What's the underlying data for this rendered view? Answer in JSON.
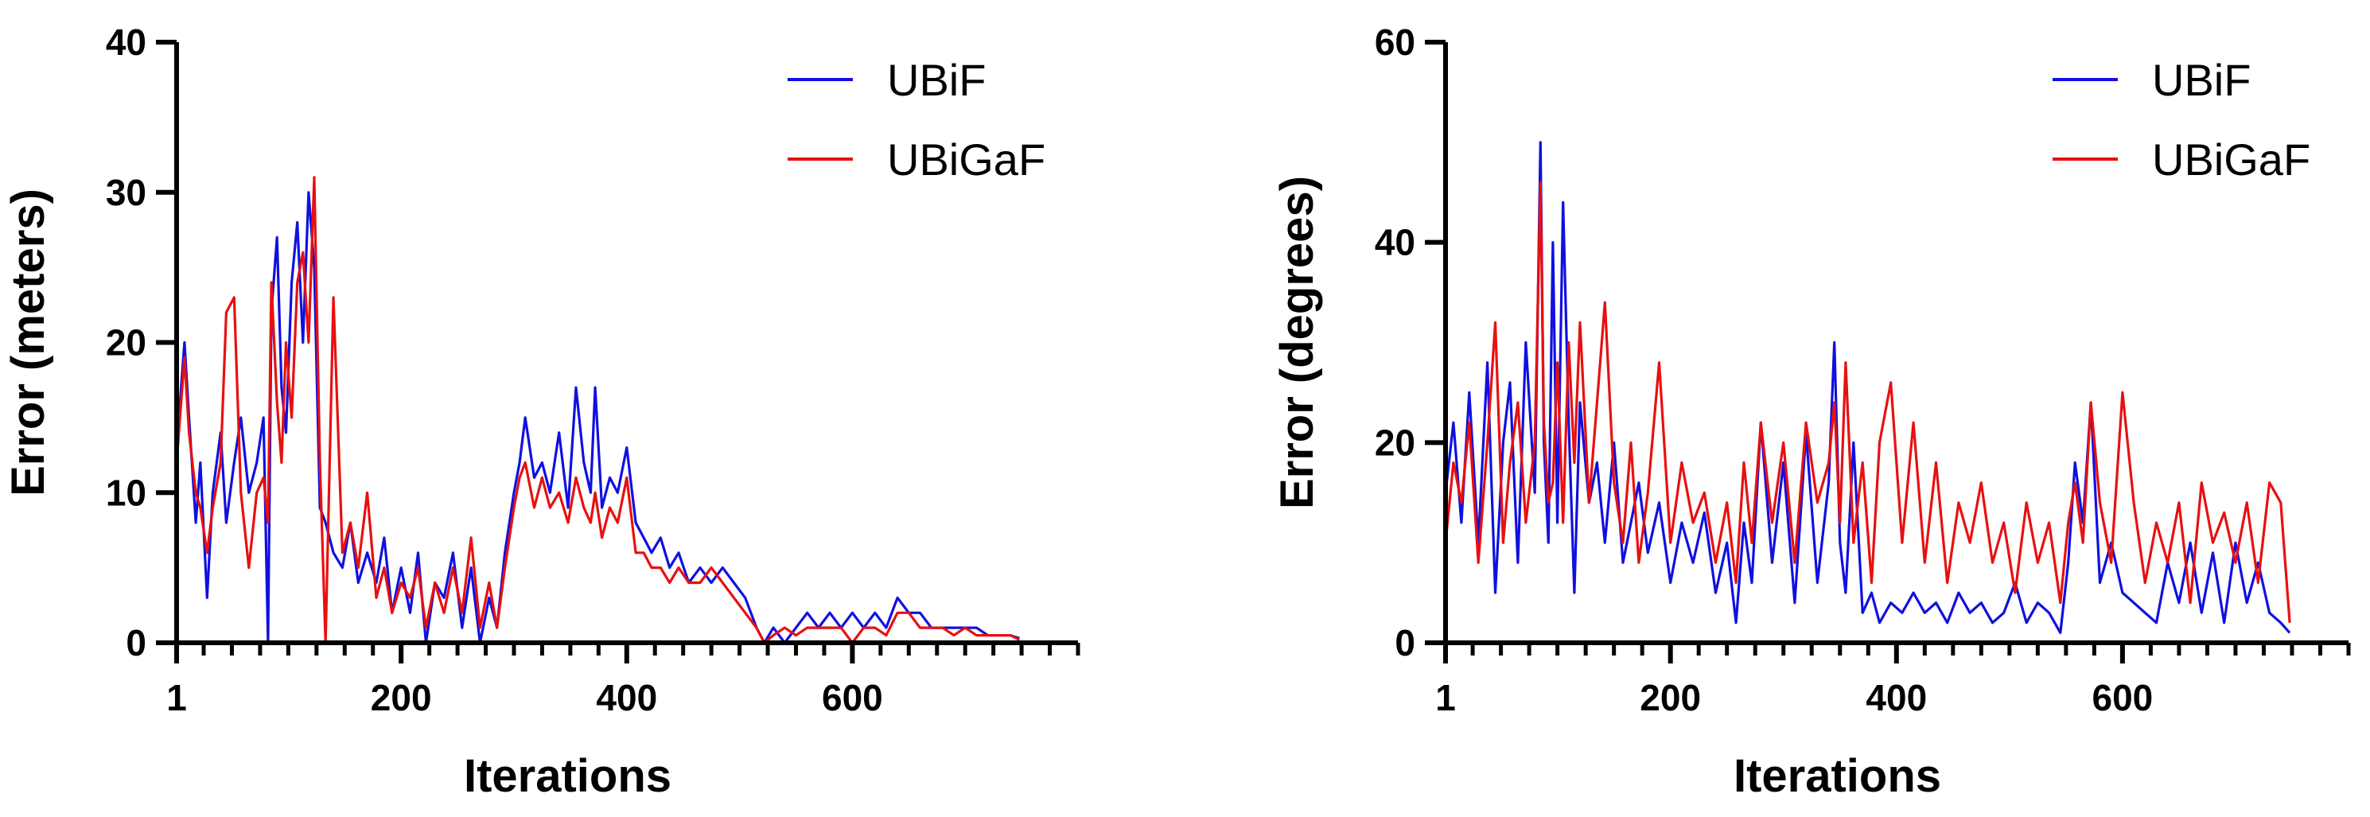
{
  "chart_data": [
    {
      "type": "line",
      "xlabel": "Iterations",
      "ylabel": "Error (meters)",
      "xlim": [
        1,
        800
      ],
      "ylim": [
        0,
        40
      ],
      "x_ticks": [
        1,
        200,
        400,
        600
      ],
      "x_tick_labels": [
        "1",
        "200",
        "400",
        "600"
      ],
      "y_ticks": [
        0,
        10,
        20,
        30,
        40
      ],
      "y_tick_labels": [
        "0",
        "10",
        "20",
        "30",
        "40"
      ],
      "legend": {
        "placement": "top-right"
      },
      "grid": false,
      "series": [
        {
          "name": "UBiF",
          "color": "#1010e0",
          "x": [
            1,
            8,
            12,
            18,
            22,
            28,
            33,
            40,
            45,
            52,
            58,
            65,
            72,
            78,
            82,
            85,
            90,
            94,
            98,
            103,
            108,
            113,
            118,
            123,
            128,
            133,
            140,
            148,
            155,
            162,
            170,
            178,
            185,
            192,
            200,
            208,
            215,
            222,
            230,
            238,
            246,
            254,
            262,
            270,
            278,
            285,
            292,
            300,
            305,
            310,
            318,
            325,
            332,
            340,
            348,
            355,
            362,
            368,
            372,
            378,
            385,
            392,
            400,
            408,
            415,
            422,
            430,
            438,
            446,
            455,
            465,
            475,
            485,
            495,
            505,
            515,
            522,
            530,
            540,
            550,
            560,
            570,
            580,
            590,
            600,
            610,
            620,
            630,
            640,
            650,
            660,
            670,
            680,
            690,
            700,
            710,
            720,
            730,
            740,
            748
          ],
          "y": [
            13,
            20,
            15,
            8,
            12,
            3,
            10,
            14,
            8,
            12,
            15,
            10,
            12,
            15,
            0,
            22,
            27,
            17,
            14,
            24,
            28,
            20,
            30,
            25,
            9,
            8,
            6,
            5,
            8,
            4,
            6,
            4,
            7,
            2,
            5,
            2,
            6,
            0,
            4,
            3,
            6,
            1,
            5,
            0,
            3,
            1,
            6,
            10,
            12,
            15,
            11,
            12,
            10,
            14,
            9,
            17,
            12,
            10,
            17,
            9,
            11,
            10,
            13,
            8,
            7,
            6,
            7,
            5,
            6,
            4,
            5,
            4,
            5,
            4,
            3,
            1,
            0,
            1,
            0,
            1,
            2,
            1,
            2,
            1,
            2,
            1,
            2,
            1,
            3,
            2,
            2,
            1,
            1,
            1,
            1,
            1,
            0.5,
            0.5,
            0.5,
            0.3
          ]
        },
        {
          "name": "UBiGaF",
          "color": "#e81010",
          "x": [
            1,
            8,
            12,
            18,
            22,
            28,
            33,
            40,
            45,
            52,
            58,
            65,
            72,
            78,
            82,
            85,
            90,
            94,
            98,
            103,
            108,
            113,
            118,
            123,
            128,
            133,
            140,
            148,
            155,
            162,
            170,
            178,
            185,
            192,
            200,
            208,
            215,
            222,
            230,
            238,
            246,
            254,
            262,
            270,
            278,
            285,
            292,
            300,
            305,
            310,
            318,
            325,
            332,
            340,
            348,
            355,
            362,
            368,
            372,
            378,
            385,
            392,
            400,
            408,
            415,
            422,
            430,
            438,
            446,
            455,
            465,
            475,
            485,
            495,
            505,
            515,
            522,
            530,
            540,
            550,
            560,
            570,
            580,
            590,
            600,
            610,
            620,
            630,
            640,
            650,
            660,
            670,
            680,
            690,
            700,
            710,
            720,
            730,
            740,
            748
          ],
          "y": [
            12,
            19,
            14,
            10,
            9,
            6,
            9,
            12,
            22,
            23,
            10,
            5,
            10,
            11,
            8,
            24,
            16,
            12,
            20,
            15,
            24,
            26,
            20,
            31,
            12,
            0,
            23,
            6,
            8,
            5,
            10,
            3,
            5,
            2,
            4,
            3,
            5,
            1,
            4,
            2,
            5,
            2,
            7,
            1,
            4,
            1,
            5,
            9,
            11,
            12,
            9,
            11,
            9,
            10,
            8,
            11,
            9,
            8,
            10,
            7,
            9,
            8,
            11,
            6,
            6,
            5,
            5,
            4,
            5,
            4,
            4,
            5,
            4,
            3,
            2,
            1,
            0,
            0.5,
            1,
            0.5,
            1,
            1,
            1,
            1,
            0,
            1,
            1,
            0.5,
            2,
            2,
            1,
            1,
            1,
            0.5,
            1,
            0.5,
            0.5,
            0.5,
            0.5,
            0.2
          ]
        }
      ]
    },
    {
      "type": "line",
      "xlabel": "Iterations",
      "ylabel": "Error (degrees)",
      "xlim": [
        1,
        800
      ],
      "ylim": [
        0,
        60
      ],
      "x_ticks": [
        1,
        200,
        400,
        600
      ],
      "x_tick_labels": [
        "1",
        "200",
        "400",
        "600"
      ],
      "y_ticks": [
        0,
        20,
        40,
        60
      ],
      "y_tick_labels": [
        "0",
        "20",
        "40",
        "60"
      ],
      "legend": {
        "placement": "top-right"
      },
      "grid": false,
      "series": [
        {
          "name": "UBiF",
          "color": "#1010e0",
          "x": [
            1,
            8,
            15,
            22,
            30,
            38,
            45,
            52,
            58,
            65,
            72,
            80,
            85,
            88,
            92,
            96,
            100,
            105,
            110,
            115,
            120,
            128,
            135,
            142,
            150,
            158,
            165,
            172,
            180,
            190,
            200,
            210,
            220,
            230,
            240,
            250,
            258,
            265,
            272,
            280,
            290,
            300,
            310,
            320,
            330,
            340,
            345,
            350,
            355,
            362,
            370,
            378,
            385,
            395,
            405,
            415,
            425,
            435,
            445,
            455,
            465,
            475,
            485,
            495,
            505,
            515,
            525,
            535,
            545,
            552,
            558,
            565,
            572,
            580,
            590,
            600,
            610,
            620,
            630,
            640,
            650,
            660,
            670,
            680,
            690,
            700,
            710,
            720,
            730,
            740,
            748
          ],
          "y": [
            15,
            22,
            12,
            25,
            10,
            28,
            5,
            20,
            26,
            8,
            30,
            15,
            50,
            20,
            10,
            40,
            12,
            44,
            22,
            5,
            24,
            14,
            18,
            10,
            20,
            8,
            12,
            16,
            9,
            14,
            6,
            12,
            8,
            13,
            5,
            10,
            2,
            12,
            6,
            22,
            8,
            18,
            4,
            21,
            6,
            16,
            30,
            10,
            5,
            20,
            3,
            5,
            2,
            4,
            3,
            5,
            3,
            4,
            2,
            5,
            3,
            4,
            2,
            3,
            6,
            2,
            4,
            3,
            1,
            8,
            18,
            12,
            24,
            6,
            10,
            5,
            4,
            3,
            2,
            8,
            4,
            10,
            3,
            9,
            2,
            10,
            4,
            8,
            3,
            2,
            1
          ]
        },
        {
          "name": "UBiGaF",
          "color": "#e81010",
          "x": [
            1,
            8,
            15,
            22,
            30,
            38,
            45,
            52,
            58,
            65,
            72,
            80,
            85,
            88,
            92,
            96,
            100,
            105,
            110,
            115,
            120,
            128,
            135,
            142,
            150,
            158,
            165,
            172,
            180,
            190,
            200,
            210,
            220,
            230,
            240,
            250,
            258,
            265,
            272,
            280,
            290,
            300,
            310,
            320,
            330,
            340,
            345,
            350,
            355,
            362,
            370,
            378,
            385,
            395,
            405,
            415,
            425,
            435,
            445,
            455,
            465,
            475,
            485,
            495,
            505,
            515,
            525,
            535,
            545,
            552,
            558,
            565,
            572,
            580,
            590,
            600,
            610,
            620,
            630,
            640,
            650,
            660,
            670,
            680,
            690,
            700,
            710,
            720,
            730,
            740,
            748
          ],
          "y": [
            10,
            18,
            14,
            22,
            8,
            20,
            32,
            10,
            18,
            24,
            12,
            20,
            46,
            22,
            14,
            16,
            28,
            12,
            30,
            18,
            32,
            14,
            24,
            34,
            16,
            10,
            20,
            8,
            15,
            28,
            10,
            18,
            12,
            15,
            8,
            14,
            6,
            18,
            10,
            22,
            12,
            20,
            8,
            22,
            14,
            18,
            24,
            12,
            28,
            10,
            18,
            6,
            20,
            26,
            10,
            22,
            8,
            18,
            6,
            14,
            10,
            16,
            8,
            12,
            5,
            14,
            8,
            12,
            4,
            12,
            16,
            10,
            24,
            14,
            8,
            25,
            14,
            6,
            12,
            8,
            14,
            4,
            16,
            10,
            13,
            8,
            14,
            6,
            16,
            14,
            2
          ]
        }
      ]
    }
  ]
}
